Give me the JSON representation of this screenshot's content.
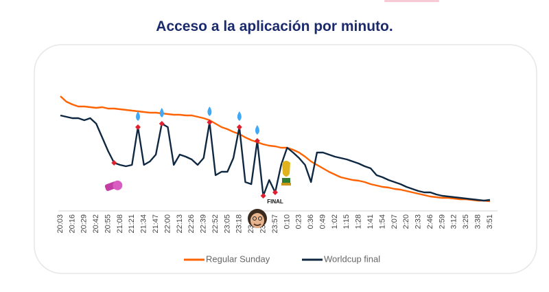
{
  "chart_data": {
    "type": "line",
    "title": "Acceso a la aplicación por minuto.",
    "annotations": [
      "FINAL"
    ],
    "categories": [
      "20:03",
      null,
      "20:16",
      null,
      "20:29",
      null,
      "20:42",
      null,
      "20:55",
      null,
      "21:08",
      null,
      "21:21",
      null,
      "21:34",
      null,
      "21:47",
      null,
      "22:00",
      null,
      "22:13",
      null,
      "22:26",
      null,
      "22:39",
      null,
      "22:52",
      null,
      "23:05",
      null,
      "23:18",
      null,
      "23:31",
      null,
      "23:44",
      null,
      "23:57",
      null,
      "0:10",
      null,
      "0:23",
      null,
      "0:36",
      null,
      "0:49",
      null,
      "1:02",
      null,
      "1:15",
      null,
      "1:28",
      null,
      "1:41",
      null,
      "1:54",
      null,
      "2:07",
      null,
      "2:20",
      null,
      "2:33",
      null,
      "2:46",
      null,
      "2:59",
      null,
      "3:12",
      null,
      "3:25",
      null,
      "3:38",
      null,
      "3:51"
    ],
    "series": [
      {
        "name": "Regular Sunday",
        "color": "#ff6200",
        "values": [
          160,
          152,
          148,
          145,
          145,
          144,
          143,
          144,
          142,
          142,
          141,
          140,
          139,
          138,
          137,
          136,
          136,
          135,
          134,
          133,
          133,
          132,
          132,
          130,
          128,
          125,
          120,
          115,
          112,
          108,
          105,
          100,
          96,
          93,
          90,
          88,
          87,
          85,
          85,
          82,
          78,
          72,
          65,
          60,
          55,
          50,
          46,
          42,
          40,
          38,
          37,
          35,
          32,
          30,
          28,
          27,
          25,
          24,
          22,
          20,
          18,
          16,
          14,
          13,
          12,
          12,
          11,
          10,
          10,
          9,
          8,
          8,
          7
        ]
      },
      {
        "name": "Worldcup final",
        "color": "#0f2841",
        "values": [
          132,
          130,
          128,
          128,
          125,
          128,
          120,
          100,
          80,
          63,
          60,
          58,
          60,
          115,
          60,
          65,
          75,
          120,
          115,
          60,
          75,
          72,
          68,
          60,
          70,
          122,
          45,
          50,
          50,
          70,
          115,
          35,
          32,
          95,
          15,
          38,
          20,
          60,
          85,
          78,
          70,
          60,
          35,
          78,
          78,
          75,
          72,
          70,
          68,
          65,
          62,
          58,
          55,
          45,
          42,
          38,
          35,
          32,
          28,
          25,
          22,
          20,
          20,
          17,
          15,
          14,
          13,
          12,
          11,
          10,
          9,
          8,
          9
        ]
      }
    ],
    "ylim": [
      0,
      170
    ]
  }
}
